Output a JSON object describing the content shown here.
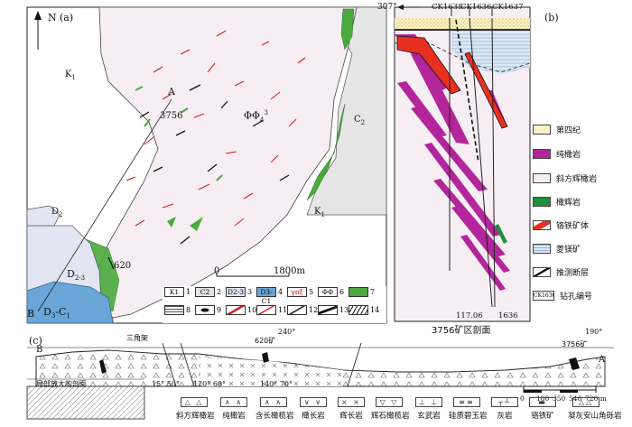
{
  "panel_a": {
    "tag": "(a)",
    "north": "N",
    "point_a": "A",
    "point_b": "B",
    "mine_3756": "3756",
    "mine_620": "620",
    "unit_pfs": "ΦΦ",
    "unit_pfs_sub": "4",
    "unit_pfs_sup": "3",
    "k1_top": "K",
    "k1_mid": "K",
    "c2": "C",
    "d2": "D",
    "d23": "D",
    "d3c1": "D",
    "scale_0": "0",
    "scale_1800": "1800m",
    "legend_items": [
      {
        "code": "K1",
        "num": "1",
        "fill": "#ffffff"
      },
      {
        "code": "C2",
        "num": "2",
        "fill": "#e3e3e3"
      },
      {
        "code": "D2-3",
        "num": "3",
        "fill": "#e2e6f3"
      },
      {
        "code": "D3-C1",
        "num": "4",
        "fill": "#6aa6d8"
      },
      {
        "code": "γπξ",
        "num": "5",
        "fill": "#ffffff"
      },
      {
        "code": "ΦΦ",
        "num": "6",
        "fill": "#ffffff"
      },
      {
        "code": "",
        "num": "7",
        "fill": "#4aaa3c"
      },
      {
        "code": "",
        "num": "8",
        "fill": "#ffffff"
      },
      {
        "code": "",
        "num": "9",
        "fill": "#ffffff"
      },
      {
        "code": "",
        "num": "10",
        "fill": "#ffffff"
      },
      {
        "code": "",
        "num": "11",
        "fill": "#ffffff"
      },
      {
        "code": "",
        "num": "12",
        "fill": "#ffffff"
      },
      {
        "code": "",
        "num": "13",
        "fill": "#ffffff"
      },
      {
        "code": "",
        "num": "14",
        "fill": "#ffffff"
      }
    ]
  },
  "panel_b": {
    "tag": "(b)",
    "bearing": "307°",
    "ck1635": "CK1635",
    "ck1636": "CK1636",
    "ck1637": "CK1637",
    "depth_a": "117.06",
    "depth_b": "1636",
    "title": "3756矿区剖面",
    "legend": [
      {
        "label": "第四纪",
        "type": "quaternary"
      },
      {
        "label": "纯橄岩",
        "type": "dunite"
      },
      {
        "label": "斜方辉橄岩",
        "type": "harz"
      },
      {
        "label": "橄辉岩",
        "type": "green"
      },
      {
        "label": "铬铁矿体",
        "type": "chromite"
      },
      {
        "label": "菱镁矿",
        "type": "magnesite"
      },
      {
        "label": "推测断层",
        "type": "fault"
      },
      {
        "label": "钻孔编号",
        "type": "drill",
        "code": "CK1636"
      }
    ]
  },
  "panel_c": {
    "tag": "(c)",
    "point_b": "B",
    "point_a": "A",
    "trig": "三角架",
    "deg_240": "240°",
    "deg_190": "190°",
    "mine_620": "620矿",
    "mine_3756": "3756矿",
    "dip_1": "15° 50°",
    "dip_2": "120° 60°",
    "dip_3": "140° 70°",
    "inset_label": "局部放大的剖面",
    "scale_ticks": [
      "0",
      "180",
      "350",
      "540",
      "720 m"
    ],
    "legend": [
      {
        "label": "斜方辉橄岩",
        "glyph": "△ △"
      },
      {
        "label": "纯橄岩",
        "glyph": "∧ ∧"
      },
      {
        "label": "含长橄榄岩",
        "glyph": "∧ ∧"
      },
      {
        "label": "橄长岩",
        "glyph": "∨ ∨"
      },
      {
        "label": "辉长岩",
        "glyph": "× ×"
      },
      {
        "label": "辉石橄榄岩",
        "glyph": "▽ ▽"
      },
      {
        "label": "玄武岩",
        "glyph": "⊥ ⊥"
      },
      {
        "label": "硅质碧玉岩",
        "glyph": "≡≡"
      },
      {
        "label": "灰岩",
        "glyph": "┬┴"
      },
      {
        "label": "铬铁矿",
        "glyph": "▬"
      },
      {
        "label": "凝灰安山角砾岩",
        "glyph": "△△"
      }
    ]
  }
}
